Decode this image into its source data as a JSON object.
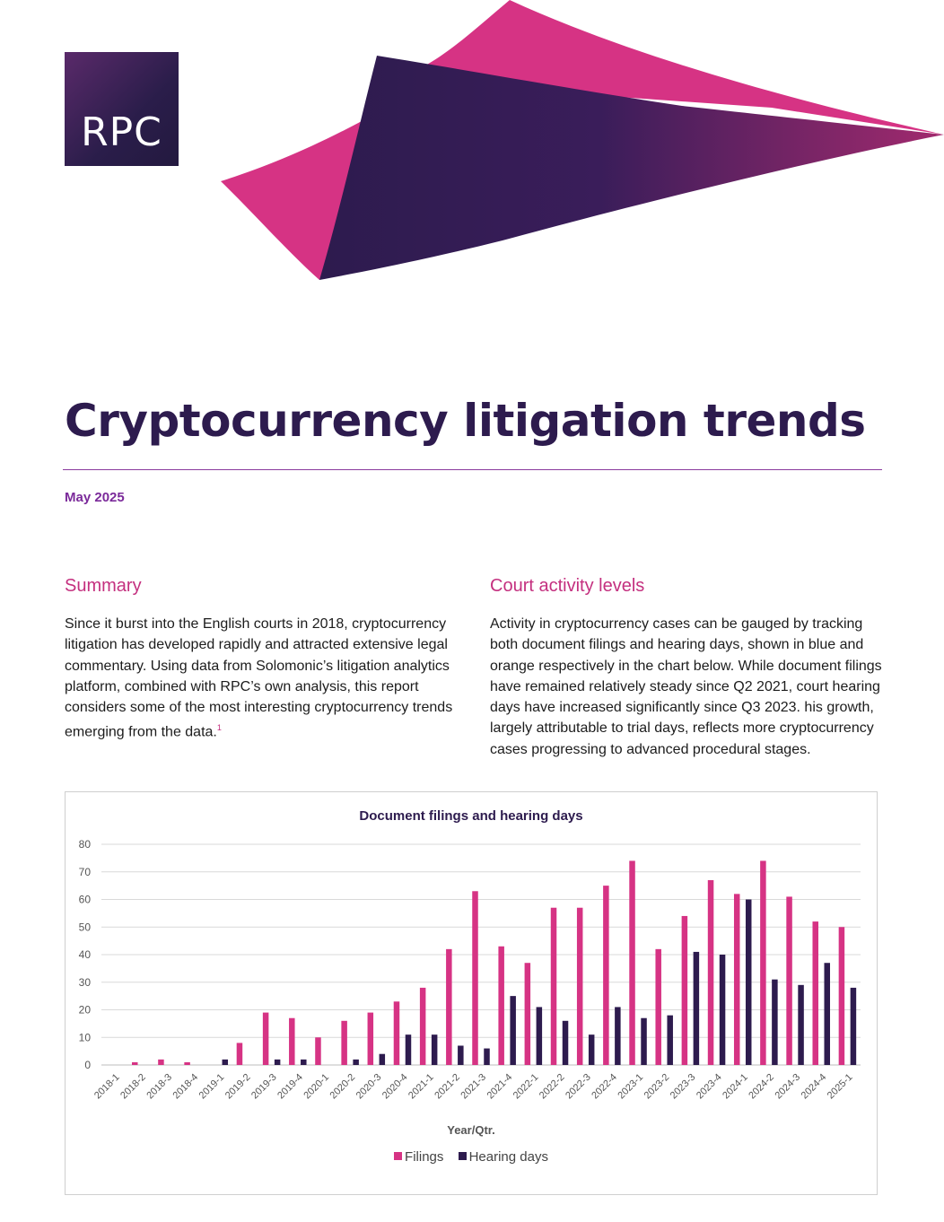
{
  "brand": {
    "logo_text": "RPC"
  },
  "colors": {
    "navy": "#2d1b4e",
    "magenta": "#d63384",
    "purple": "#7b2a9a",
    "pink_heading": "#c4307f"
  },
  "document": {
    "title": "Cryptocurrency litigation trends",
    "date": "May 2025"
  },
  "summary": {
    "heading": "Summary",
    "body": "Since it burst into the English courts in 2018, cryptocurrency litigation has developed rapidly and attracted extensive legal commentary. Using data from Solomonic’s litigation analytics platform, combined with RPC’s own analysis, this report considers some of the most interesting cryptocurrency trends emerging from the data.",
    "footnote_ref": "1"
  },
  "court_activity": {
    "heading": "Court activity levels",
    "body": "Activity in cryptocurrency cases can be gauged by tracking both document filings and hearing days, shown in blue and orange respectively in the chart below. While document filings have remained relatively steady since Q2 2021, court hearing days have increased significantly since Q3 2023. his growth, largely attributable to trial days, reflects more cryptocurrency cases progressing to advanced procedural stages."
  },
  "chart_data": {
    "type": "bar",
    "title": "Document filings and hearing days",
    "xlabel": "Year/Qtr.",
    "ylabel": "",
    "ylim": [
      0,
      80
    ],
    "yticks": [
      0,
      10,
      20,
      30,
      40,
      50,
      60,
      70,
      80
    ],
    "grid": true,
    "legend": "bottom",
    "categories": [
      "2018-1",
      "2018-2",
      "2018-3",
      "2018-4",
      "2019-1",
      "2019-2",
      "2019-3",
      "2019-4",
      "2020-1",
      "2020-2",
      "2020-3",
      "2020-4",
      "2021-1",
      "2021-2",
      "2021-3",
      "2021-4",
      "2022-1",
      "2022-2",
      "2022-3",
      "2022-4",
      "2023-1",
      "2023-2",
      "2023-3",
      "2023-4",
      "2024-1",
      "2024-2",
      "2024-3",
      "2024-4",
      "2025-1"
    ],
    "series": [
      {
        "name": "Filings",
        "color": "#d63384",
        "values": [
          0,
          1,
          2,
          1,
          0,
          8,
          19,
          17,
          10,
          16,
          19,
          23,
          28,
          42,
          63,
          43,
          37,
          57,
          57,
          65,
          74,
          42,
          54,
          67,
          62,
          74,
          61,
          52,
          50
        ]
      },
      {
        "name": "Hearing days",
        "color": "#2d1b4e",
        "values": [
          0,
          0,
          0,
          0,
          2,
          0,
          2,
          2,
          0,
          2,
          4,
          11,
          11,
          7,
          6,
          25,
          21,
          16,
          11,
          21,
          17,
          18,
          41,
          40,
          60,
          31,
          29,
          37,
          28
        ]
      }
    ]
  }
}
